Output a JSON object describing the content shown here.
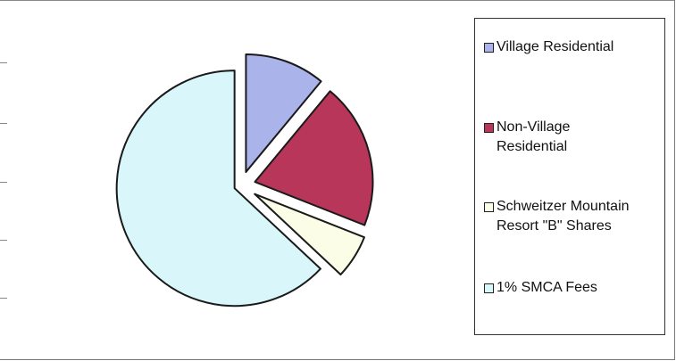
{
  "chart_data": {
    "type": "pie",
    "title": "",
    "slices": [
      {
        "label": "Village Residential",
        "value": 11,
        "color": "#aab3ea",
        "exploded": true
      },
      {
        "label": "Non-Village Residential",
        "value": 20,
        "color": "#b8365a",
        "exploded": true
      },
      {
        "label": "Schweitzer Mountain Resort \"B\" Shares",
        "value": 6,
        "color": "#fbfde6",
        "exploded": true
      },
      {
        "label": "1% SMCA Fees",
        "value": 63,
        "color": "#d9f7fb",
        "exploded": true
      }
    ],
    "legend": {
      "placement": "right"
    }
  }
}
